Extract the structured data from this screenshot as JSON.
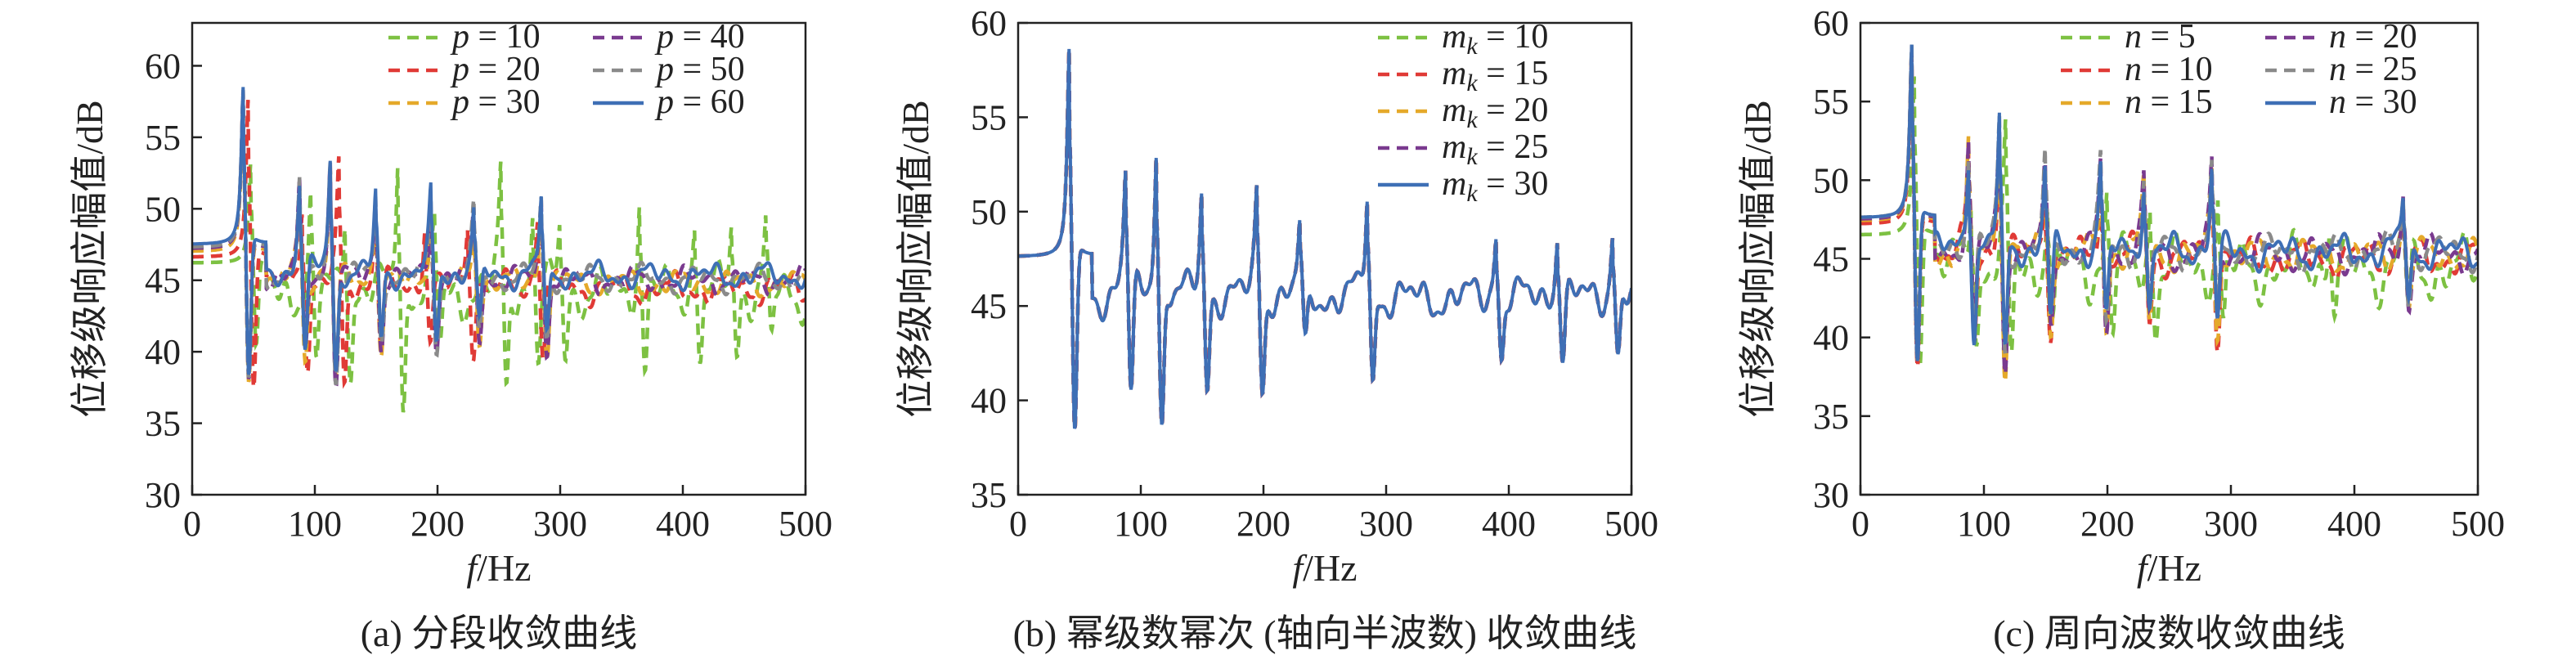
{
  "chart_data": [
    {
      "type": "line",
      "caption": "(a) 分段收敛曲线",
      "xlabel": "f/Hz",
      "ylabel": "位移级响应幅值/dB",
      "xlim": [
        0,
        500
      ],
      "ylim": [
        30,
        63
      ],
      "xticks": [
        0,
        100,
        200,
        300,
        400,
        500
      ],
      "yticks": [
        30,
        35,
        40,
        45,
        50,
        55,
        60
      ],
      "legend": {
        "placement": "top-right",
        "columns": 2
      },
      "series": [
        {
          "name": "p = 10",
          "var": "p",
          "val": "10",
          "color": "#7dc142",
          "dash": "dashed",
          "modes": [
            [
              48,
              7.5
            ],
            [
              97,
              6.5
            ],
            [
              125,
              7
            ],
            [
              168,
              11
            ],
            [
              198,
              5
            ],
            [
              252,
              9
            ],
            [
              278,
              6
            ],
            [
              300,
              5
            ],
            [
              365,
              7
            ],
            [
              410,
              5
            ],
            [
              440,
              5
            ],
            [
              468,
              5
            ]
          ],
          "baseline": 46.2,
          "noise": 2.0,
          "seed": 11
        },
        {
          "name": "p = 20",
          "var": "p",
          "val": "20",
          "color": "#e03a36",
          "dash": "dashed",
          "modes": [
            [
              46,
              12
            ],
            [
              90,
              7
            ],
            [
              120,
              9
            ],
            [
              150,
              6
            ],
            [
              190,
              5
            ],
            [
              225,
              5
            ],
            [
              282,
              6
            ]
          ],
          "baseline": 46.6,
          "noise": 1.2,
          "seed": 12
        },
        {
          "name": "p = 30",
          "var": "p",
          "val": "30",
          "color": "#e5a92a",
          "dash": "dashed",
          "modes": [
            [
              42,
              12
            ],
            [
              88,
              7
            ],
            [
              113,
              9
            ],
            [
              150,
              6
            ],
            [
              195,
              6
            ],
            [
              230,
              5
            ],
            [
              285,
              6
            ]
          ],
          "baseline": 47.0,
          "noise": 1.0,
          "seed": 13
        },
        {
          "name": "p = 40",
          "var": "p",
          "val": "40",
          "color": "#7a3a8f",
          "dash": "dashed",
          "modes": [
            [
              42,
              12
            ],
            [
              88,
              7
            ],
            [
              113,
              9
            ],
            [
              150,
              6
            ],
            [
              195,
              6
            ],
            [
              230,
              5
            ],
            [
              285,
              6
            ]
          ],
          "baseline": 47.2,
          "noise": 1.0,
          "seed": 14
        },
        {
          "name": "p = 50",
          "var": "p",
          "val": "50",
          "color": "#8a8a8a",
          "dash": "dashed",
          "modes": [
            [
              42,
              12
            ],
            [
              88,
              7
            ],
            [
              113,
              9
            ],
            [
              150,
              6
            ],
            [
              195,
              6
            ],
            [
              230,
              5
            ],
            [
              285,
              6
            ]
          ],
          "baseline": 47.3,
          "noise": 1.0,
          "seed": 15
        },
        {
          "name": "p = 60",
          "var": "p",
          "val": "60",
          "color": "#3e6fb5",
          "dash": "solid",
          "modes": [
            [
              42,
              12
            ],
            [
              88,
              7
            ],
            [
              113,
              9
            ],
            [
              150,
              6
            ],
            [
              195,
              6
            ],
            [
              230,
              5
            ],
            [
              285,
              6
            ]
          ],
          "baseline": 47.5,
          "noise": 1.0,
          "seed": 16
        }
      ]
    },
    {
      "type": "line",
      "caption": "(b) 幂级数幂次 (轴向半波数) 收敛曲线",
      "xlabel": "f/Hz",
      "ylabel": "位移级响应幅值/dB",
      "xlim": [
        0,
        500
      ],
      "ylim": [
        35,
        60
      ],
      "xticks": [
        0,
        100,
        200,
        300,
        400,
        500
      ],
      "yticks": [
        35,
        40,
        45,
        50,
        55,
        60
      ],
      "legend": {
        "placement": "top-right",
        "columns": 1
      },
      "series": [
        {
          "name": "m_k = 10",
          "var": "m",
          "sub": "k",
          "val": "10",
          "color": "#7dc142",
          "dash": "dashed",
          "modes": [
            [
              42,
              12
            ],
            [
              88,
              7
            ],
            [
              113,
              9
            ],
            [
              150,
              6
            ],
            [
              195,
              6
            ],
            [
              230,
              4
            ],
            [
              285,
              6
            ],
            [
              390,
              4
            ],
            [
              440,
              4
            ],
            [
              485,
              4
            ]
          ],
          "baseline": 47.6,
          "noise": 1.2,
          "seed": 21
        },
        {
          "name": "m_k = 15",
          "var": "m",
          "sub": "k",
          "val": "15",
          "color": "#e03a36",
          "dash": "dashed",
          "modes": [
            [
              42,
              12
            ],
            [
              88,
              7
            ],
            [
              113,
              9
            ],
            [
              150,
              6
            ],
            [
              195,
              6
            ],
            [
              230,
              4
            ],
            [
              285,
              6
            ],
            [
              390,
              4
            ],
            [
              440,
              4
            ],
            [
              485,
              4
            ]
          ],
          "baseline": 47.6,
          "noise": 1.2,
          "seed": 21
        },
        {
          "name": "m_k = 20",
          "var": "m",
          "sub": "k",
          "val": "20",
          "color": "#e5a92a",
          "dash": "dashed",
          "modes": [
            [
              42,
              12
            ],
            [
              88,
              7
            ],
            [
              113,
              9
            ],
            [
              150,
              6
            ],
            [
              195,
              6
            ],
            [
              230,
              4
            ],
            [
              285,
              6
            ],
            [
              390,
              4
            ],
            [
              440,
              4
            ],
            [
              485,
              4
            ]
          ],
          "baseline": 47.6,
          "noise": 1.2,
          "seed": 21
        },
        {
          "name": "m_k = 25",
          "var": "m",
          "sub": "k",
          "val": "25",
          "color": "#7a3a8f",
          "dash": "dashed",
          "modes": [
            [
              42,
              12
            ],
            [
              88,
              7
            ],
            [
              113,
              9
            ],
            [
              150,
              6
            ],
            [
              195,
              6
            ],
            [
              230,
              4
            ],
            [
              285,
              6
            ],
            [
              390,
              4
            ],
            [
              440,
              4
            ],
            [
              485,
              4
            ]
          ],
          "baseline": 47.6,
          "noise": 1.2,
          "seed": 21
        },
        {
          "name": "m_k = 30",
          "var": "m",
          "sub": "k",
          "val": "30",
          "color": "#3e6fb5",
          "dash": "solid",
          "modes": [
            [
              42,
              12
            ],
            [
              88,
              7
            ],
            [
              113,
              9
            ],
            [
              150,
              6
            ],
            [
              195,
              6
            ],
            [
              230,
              4
            ],
            [
              285,
              6
            ],
            [
              390,
              4
            ],
            [
              440,
              4
            ],
            [
              485,
              4
            ]
          ],
          "baseline": 47.6,
          "noise": 1.2,
          "seed": 21
        }
      ]
    },
    {
      "type": "line",
      "caption": "(c) 周向波数收敛曲线",
      "xlabel": "f/Hz",
      "ylabel": "位移级响应幅值/dB",
      "xlim": [
        0,
        500
      ],
      "ylim": [
        30,
        60
      ],
      "xticks": [
        0,
        100,
        200,
        300,
        400,
        500
      ],
      "yticks": [
        30,
        35,
        40,
        45,
        50,
        55,
        60
      ],
      "legend": {
        "placement": "top-right",
        "columns": 2
      },
      "series": [
        {
          "name": "n = 5",
          "var": "n",
          "val": "5",
          "color": "#7dc142",
          "dash": "dashed",
          "modes": [
            [
              44,
              11
            ],
            [
              90,
              6
            ],
            [
              118,
              8
            ],
            [
              152,
              5
            ],
            [
              200,
              5
            ],
            [
              235,
              4
            ],
            [
              290,
              5
            ],
            [
              380,
              4
            ],
            [
              440,
              4
            ]
          ],
          "baseline": 46.5,
          "noise": 2.2,
          "seed": 31
        },
        {
          "name": "n = 10",
          "var": "n",
          "val": "10",
          "color": "#e03a36",
          "dash": "dashed",
          "modes": [
            [
              42,
              12
            ],
            [
              88,
              7
            ],
            [
              113,
              9
            ],
            [
              150,
              6
            ],
            [
              195,
              6
            ],
            [
              230,
              5
            ],
            [
              285,
              6
            ],
            [
              440,
              4
            ]
          ],
          "baseline": 47.2,
          "noise": 1.3,
          "seed": 32
        },
        {
          "name": "n = 15",
          "var": "n",
          "val": "15",
          "color": "#e5a92a",
          "dash": "dashed",
          "modes": [
            [
              42,
              12
            ],
            [
              88,
              7
            ],
            [
              113,
              9
            ],
            [
              150,
              6
            ],
            [
              195,
              6
            ],
            [
              230,
              5
            ],
            [
              285,
              6
            ],
            [
              440,
              4
            ]
          ],
          "baseline": 47.4,
          "noise": 1.2,
          "seed": 33
        },
        {
          "name": "n = 20",
          "var": "n",
          "val": "20",
          "color": "#7a3a8f",
          "dash": "dashed",
          "modes": [
            [
              42,
              12
            ],
            [
              88,
              7
            ],
            [
              113,
              9
            ],
            [
              150,
              6
            ],
            [
              195,
              6
            ],
            [
              230,
              5
            ],
            [
              285,
              6
            ],
            [
              440,
              4
            ]
          ],
          "baseline": 47.5,
          "noise": 1.2,
          "seed": 34
        },
        {
          "name": "n = 25",
          "var": "n",
          "val": "25",
          "color": "#8a8a8a",
          "dash": "dashed",
          "modes": [
            [
              42,
              12
            ],
            [
              88,
              7
            ],
            [
              113,
              9
            ],
            [
              150,
              6
            ],
            [
              195,
              6
            ],
            [
              230,
              5
            ],
            [
              285,
              6
            ],
            [
              440,
              4
            ]
          ],
          "baseline": 47.6,
          "noise": 1.2,
          "seed": 35
        },
        {
          "name": "n = 30",
          "var": "n",
          "val": "30",
          "color": "#3e6fb5",
          "dash": "solid",
          "modes": [
            [
              42,
              12
            ],
            [
              88,
              7
            ],
            [
              113,
              9
            ],
            [
              150,
              6
            ],
            [
              195,
              6
            ],
            [
              230,
              5
            ],
            [
              285,
              6
            ],
            [
              440,
              4
            ]
          ],
          "baseline": 47.6,
          "noise": 1.2,
          "seed": 36
        }
      ]
    }
  ]
}
